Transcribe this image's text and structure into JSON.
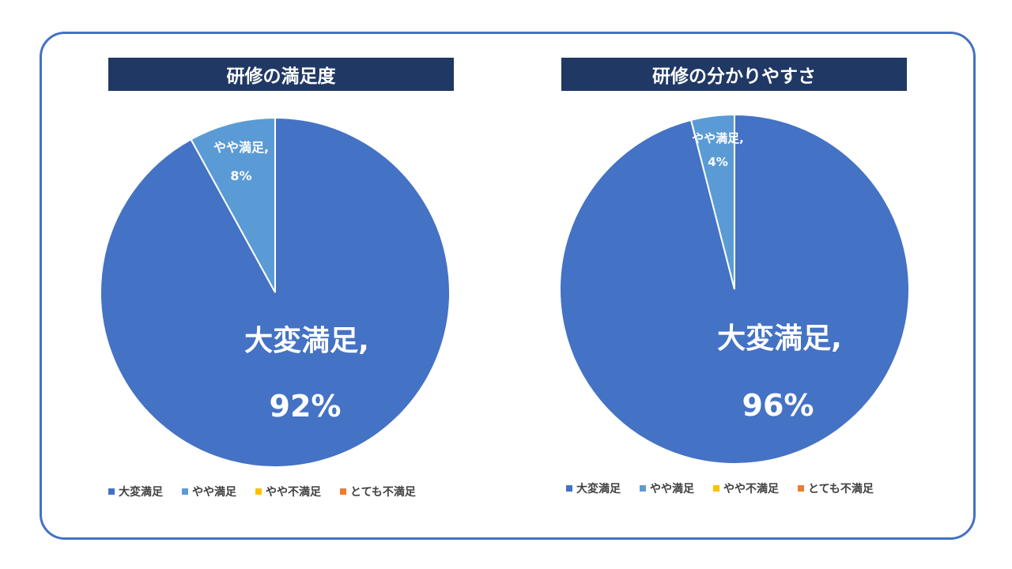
{
  "chart_data": [
    {
      "type": "pie",
      "title": "研修の満足度",
      "categories": [
        "大変満足",
        "やや満足",
        "やや不満足",
        "とても不満足"
      ],
      "values": [
        92,
        8,
        0,
        0
      ],
      "colors": [
        "#4472c4",
        "#5b9bd5",
        "#ffc000",
        "#ed7d31"
      ],
      "data_labels": {
        "大変満足": {
          "name": "大変満足,",
          "value": "92%"
        },
        "やや満足": {
          "name": "やや満足,",
          "value": "8%"
        }
      },
      "legend": "bottom"
    },
    {
      "type": "pie",
      "title": "研修の分かりやすさ",
      "categories": [
        "大変満足",
        "やや満足",
        "やや不満足",
        "とても不満足"
      ],
      "values": [
        96,
        4,
        0,
        0
      ],
      "colors": [
        "#4472c4",
        "#5b9bd5",
        "#ffc000",
        "#ed7d31"
      ],
      "data_labels": {
        "大変満足": {
          "name": "大変満足,",
          "value": "96%"
        },
        "やや満足": {
          "name": "やや満足,",
          "value": "4%"
        }
      },
      "legend": "bottom"
    }
  ]
}
